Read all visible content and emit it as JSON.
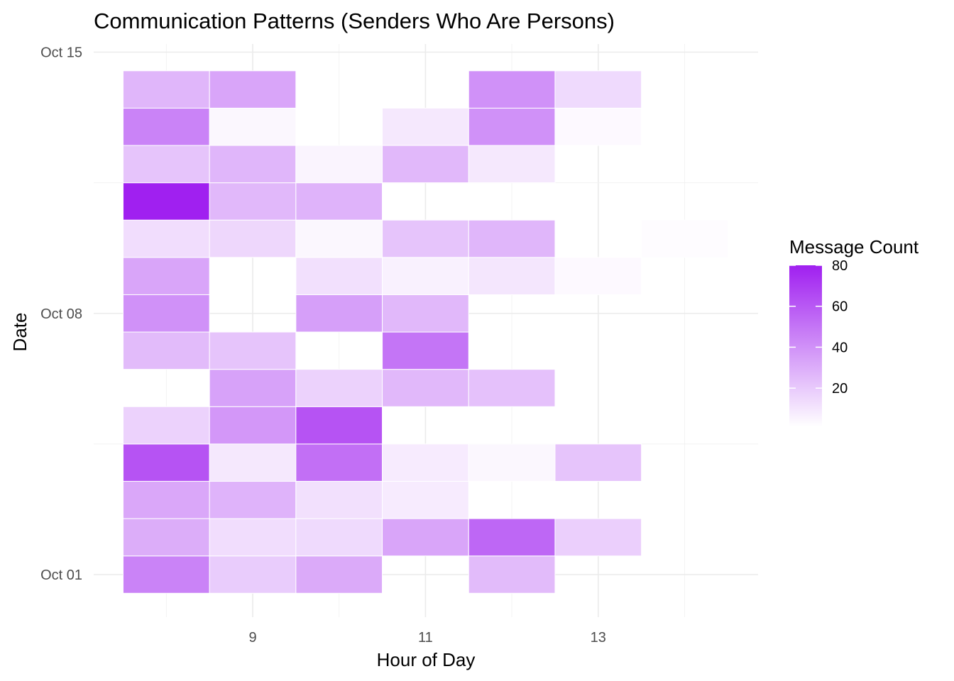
{
  "chart_data": {
    "type": "heatmap",
    "title": "Communication Patterns (Senders Who Are Persons)",
    "xlabel": "Hour of Day",
    "ylabel": "Date",
    "x_ticks": [
      9,
      11,
      13
    ],
    "y_ticks": [
      "Oct 01",
      "Oct 08",
      "Oct 15"
    ],
    "x_range": [
      7.5,
      14.5
    ],
    "legend": {
      "title": "Message Count",
      "ticks": [
        20,
        40,
        60,
        80
      ],
      "range": [
        1,
        80
      ],
      "color_low": "#ffffff",
      "color_high": "#a020f0",
      "position": "right"
    },
    "dates": [
      "Oct 01",
      "Oct 02",
      "Oct 03",
      "Oct 04",
      "Oct 05",
      "Oct 06",
      "Oct 07",
      "Oct 08",
      "Oct 09",
      "Oct 10",
      "Oct 11",
      "Oct 12",
      "Oct 13",
      "Oct 14"
    ],
    "cells": [
      {
        "date": "Oct 01",
        "hour": 8,
        "count": 45
      },
      {
        "date": "Oct 01",
        "hour": 9,
        "count": 19
      },
      {
        "date": "Oct 01",
        "hour": 10,
        "count": 31
      },
      {
        "date": "Oct 01",
        "hour": 12,
        "count": 25
      },
      {
        "date": "Oct 02",
        "hour": 8,
        "count": 30
      },
      {
        "date": "Oct 02",
        "hour": 9,
        "count": 13
      },
      {
        "date": "Oct 02",
        "hour": 10,
        "count": 14
      },
      {
        "date": "Oct 02",
        "hour": 11,
        "count": 33
      },
      {
        "date": "Oct 02",
        "hour": 12,
        "count": 55
      },
      {
        "date": "Oct 02",
        "hour": 13,
        "count": 18
      },
      {
        "date": "Oct 03",
        "hour": 8,
        "count": 32
      },
      {
        "date": "Oct 03",
        "hour": 9,
        "count": 28
      },
      {
        "date": "Oct 03",
        "hour": 10,
        "count": 12
      },
      {
        "date": "Oct 03",
        "hour": 11,
        "count": 8
      },
      {
        "date": "Oct 04",
        "hour": 8,
        "count": 62
      },
      {
        "date": "Oct 04",
        "hour": 9,
        "count": 9
      },
      {
        "date": "Oct 04",
        "hour": 10,
        "count": 52
      },
      {
        "date": "Oct 04",
        "hour": 11,
        "count": 8
      },
      {
        "date": "Oct 04",
        "hour": 12,
        "count": 4
      },
      {
        "date": "Oct 04",
        "hour": 13,
        "count": 22
      },
      {
        "date": "Oct 05",
        "hour": 8,
        "count": 17
      },
      {
        "date": "Oct 05",
        "hour": 9,
        "count": 38
      },
      {
        "date": "Oct 05",
        "hour": 10,
        "count": 62
      },
      {
        "date": "Oct 06",
        "hour": 9,
        "count": 34
      },
      {
        "date": "Oct 06",
        "hour": 10,
        "count": 17
      },
      {
        "date": "Oct 06",
        "hour": 11,
        "count": 26
      },
      {
        "date": "Oct 06",
        "hour": 12,
        "count": 23
      },
      {
        "date": "Oct 07",
        "hour": 8,
        "count": 25
      },
      {
        "date": "Oct 07",
        "hour": 9,
        "count": 22
      },
      {
        "date": "Oct 07",
        "hour": 11,
        "count": 50
      },
      {
        "date": "Oct 08",
        "hour": 8,
        "count": 40
      },
      {
        "date": "Oct 08",
        "hour": 10,
        "count": 35
      },
      {
        "date": "Oct 08",
        "hour": 11,
        "count": 26
      },
      {
        "date": "Oct 09",
        "hour": 8,
        "count": 33
      },
      {
        "date": "Oct 09",
        "hour": 10,
        "count": 12
      },
      {
        "date": "Oct 09",
        "hour": 11,
        "count": 6
      },
      {
        "date": "Oct 09",
        "hour": 12,
        "count": 10
      },
      {
        "date": "Oct 09",
        "hour": 13,
        "count": 3
      },
      {
        "date": "Oct 10",
        "hour": 8,
        "count": 13
      },
      {
        "date": "Oct 10",
        "hour": 9,
        "count": 15
      },
      {
        "date": "Oct 10",
        "hour": 10,
        "count": 4
      },
      {
        "date": "Oct 10",
        "hour": 11,
        "count": 22
      },
      {
        "date": "Oct 10",
        "hour": 12,
        "count": 27
      },
      {
        "date": "Oct 10",
        "hour": 14,
        "count": 2
      },
      {
        "date": "Oct 11",
        "hour": 8,
        "count": 80
      },
      {
        "date": "Oct 11",
        "hour": 9,
        "count": 26
      },
      {
        "date": "Oct 11",
        "hour": 10,
        "count": 28
      },
      {
        "date": "Oct 12",
        "hour": 8,
        "count": 22
      },
      {
        "date": "Oct 12",
        "hour": 9,
        "count": 27
      },
      {
        "date": "Oct 12",
        "hour": 10,
        "count": 5
      },
      {
        "date": "Oct 12",
        "hour": 11,
        "count": 26
      },
      {
        "date": "Oct 12",
        "hour": 12,
        "count": 9
      },
      {
        "date": "Oct 13",
        "hour": 8,
        "count": 45
      },
      {
        "date": "Oct 13",
        "hour": 9,
        "count": 4
      },
      {
        "date": "Oct 13",
        "hour": 11,
        "count": 9
      },
      {
        "date": "Oct 13",
        "hour": 12,
        "count": 40
      },
      {
        "date": "Oct 13",
        "hour": 13,
        "count": 3
      },
      {
        "date": "Oct 14",
        "hour": 8,
        "count": 27
      },
      {
        "date": "Oct 14",
        "hour": 9,
        "count": 33
      },
      {
        "date": "Oct 14",
        "hour": 12,
        "count": 40
      },
      {
        "date": "Oct 14",
        "hour": 13,
        "count": 14
      }
    ]
  }
}
